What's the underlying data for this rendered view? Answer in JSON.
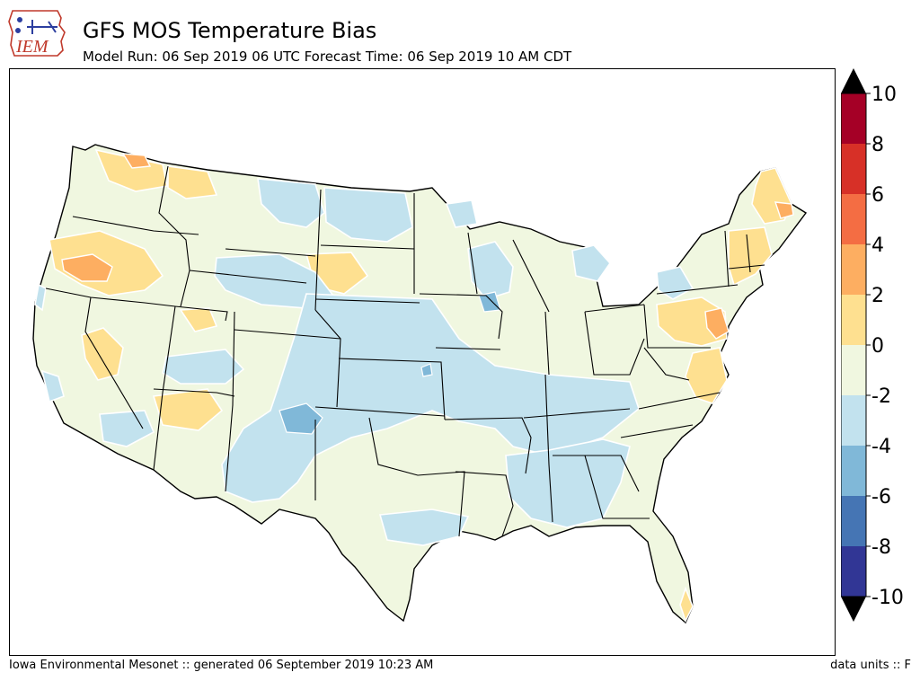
{
  "header": {
    "title": "GFS MOS Temperature Bias",
    "subtitle": "Model Run: 06 Sep 2019 06 UTC Forecast Time: 06 Sep 2019 10 AM CDT",
    "logo_text": "IEM"
  },
  "footer": {
    "left": "Iowa Environmental Mesonet :: generated 06 September 2019 10:23 AM",
    "right": "data units :: F"
  },
  "colorbar": {
    "ticks": [
      "10",
      "8",
      "6",
      "4",
      "2",
      "0",
      "-2",
      "-4",
      "-6",
      "-8",
      "-10"
    ],
    "bins": [
      {
        "range": "8 to 10",
        "color": "#a50026"
      },
      {
        "range": "6 to 8",
        "color": "#d73027"
      },
      {
        "range": "4 to 6",
        "color": "#f46d43"
      },
      {
        "range": "2 to 4",
        "color": "#fdae61"
      },
      {
        "range": "0 to 2",
        "color": "#fee090"
      },
      {
        "range": "-2 to 0",
        "color": "#f0f7e0"
      },
      {
        "range": "-4 to -2",
        "color": "#c2e2ee"
      },
      {
        "range": "-6 to -4",
        "color": "#80b8d8"
      },
      {
        "range": "-8 to -6",
        "color": "#4575b4"
      },
      {
        "range": "-10 to -8",
        "color": "#313695"
      }
    ],
    "over_color": "#000000",
    "under_color": "#000000"
  }
}
